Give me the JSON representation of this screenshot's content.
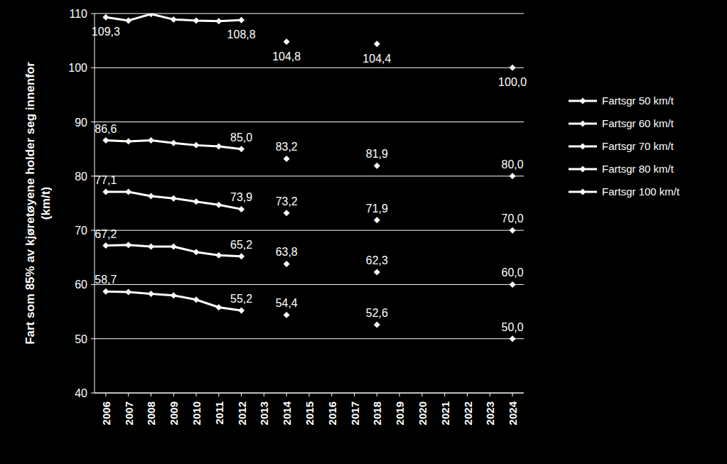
{
  "chart_data": {
    "type": "line",
    "y_label": [
      "Fart som 85% av kjøretøyene holder seg innenfor",
      "(km/t)"
    ],
    "x": [
      2006,
      2007,
      2008,
      2009,
      2010,
      2011,
      2012,
      2013,
      2014,
      2015,
      2016,
      2017,
      2018,
      2019,
      2020,
      2021,
      2022,
      2023,
      2024
    ],
    "xlim": [
      2005.5,
      2024.5
    ],
    "xticks": [
      2006,
      2007,
      2008,
      2009,
      2010,
      2011,
      2012,
      2013,
      2014,
      2015,
      2016,
      2017,
      2018,
      2019,
      2020,
      2021,
      2022,
      2023,
      2024
    ],
    "ylim": [
      40,
      110
    ],
    "yticks": [
      40,
      50,
      60,
      70,
      80,
      90,
      100,
      110
    ],
    "grid": true,
    "legend": "right",
    "marker": "diamond",
    "color": "#ffffff",
    "series": [
      {
        "name": "Fartsgr 50 km/t",
        "color": "#ffffff",
        "values": [
          58.7,
          58.6,
          58.3,
          58.0,
          57.2,
          55.8,
          55.2,
          null,
          54.4,
          null,
          null,
          null,
          52.6,
          null,
          null,
          null,
          null,
          null,
          50.0
        ],
        "value_labels": [
          "58,7",
          null,
          null,
          null,
          null,
          null,
          "55,2",
          null,
          "54,4",
          null,
          null,
          null,
          "52,6",
          null,
          null,
          null,
          null,
          null,
          "50,0"
        ]
      },
      {
        "name": "Fartsgr 60 km/t",
        "color": "#ffffff",
        "values": [
          67.2,
          67.3,
          67.0,
          67.0,
          66.0,
          65.4,
          65.2,
          null,
          63.8,
          null,
          null,
          null,
          62.3,
          null,
          null,
          null,
          null,
          null,
          60.0
        ],
        "value_labels": [
          "67,2",
          null,
          null,
          null,
          null,
          null,
          "65,2",
          null,
          "63,8",
          null,
          null,
          null,
          "62,3",
          null,
          null,
          null,
          null,
          null,
          "60,0"
        ]
      },
      {
        "name": "Fartsgr 70 km/t",
        "color": "#ffffff",
        "values": [
          77.1,
          77.1,
          76.3,
          75.9,
          75.3,
          74.7,
          73.9,
          null,
          73.2,
          null,
          null,
          null,
          71.9,
          null,
          null,
          null,
          null,
          null,
          70.0
        ],
        "value_labels": [
          "77,1",
          null,
          null,
          null,
          null,
          null,
          "73,9",
          null,
          "73,2",
          null,
          null,
          null,
          "71,9",
          null,
          null,
          null,
          null,
          null,
          "70,0"
        ]
      },
      {
        "name": "Fartsgr 80 km/t",
        "color": "#ffffff",
        "values": [
          86.6,
          86.4,
          86.6,
          86.1,
          85.7,
          85.5,
          85.0,
          null,
          83.2,
          null,
          null,
          null,
          81.9,
          null,
          null,
          null,
          null,
          null,
          80.0
        ],
        "value_labels": [
          "86,6",
          null,
          null,
          null,
          null,
          null,
          "85,0",
          null,
          "83,2",
          null,
          null,
          null,
          "81,9",
          null,
          null,
          null,
          null,
          null,
          "80,0"
        ]
      },
      {
        "name": "Fartsgr 100 km/t",
        "color": "#ffffff",
        "values": [
          109.3,
          108.7,
          109.9,
          108.9,
          108.7,
          108.6,
          108.8,
          null,
          104.8,
          null,
          null,
          null,
          104.4,
          null,
          null,
          null,
          null,
          null,
          100.0
        ],
        "value_labels": [
          "109,3",
          null,
          null,
          null,
          null,
          null,
          "108,8",
          null,
          "104,8",
          null,
          null,
          null,
          "104,4",
          null,
          null,
          null,
          null,
          null,
          "100,0"
        ]
      }
    ]
  }
}
